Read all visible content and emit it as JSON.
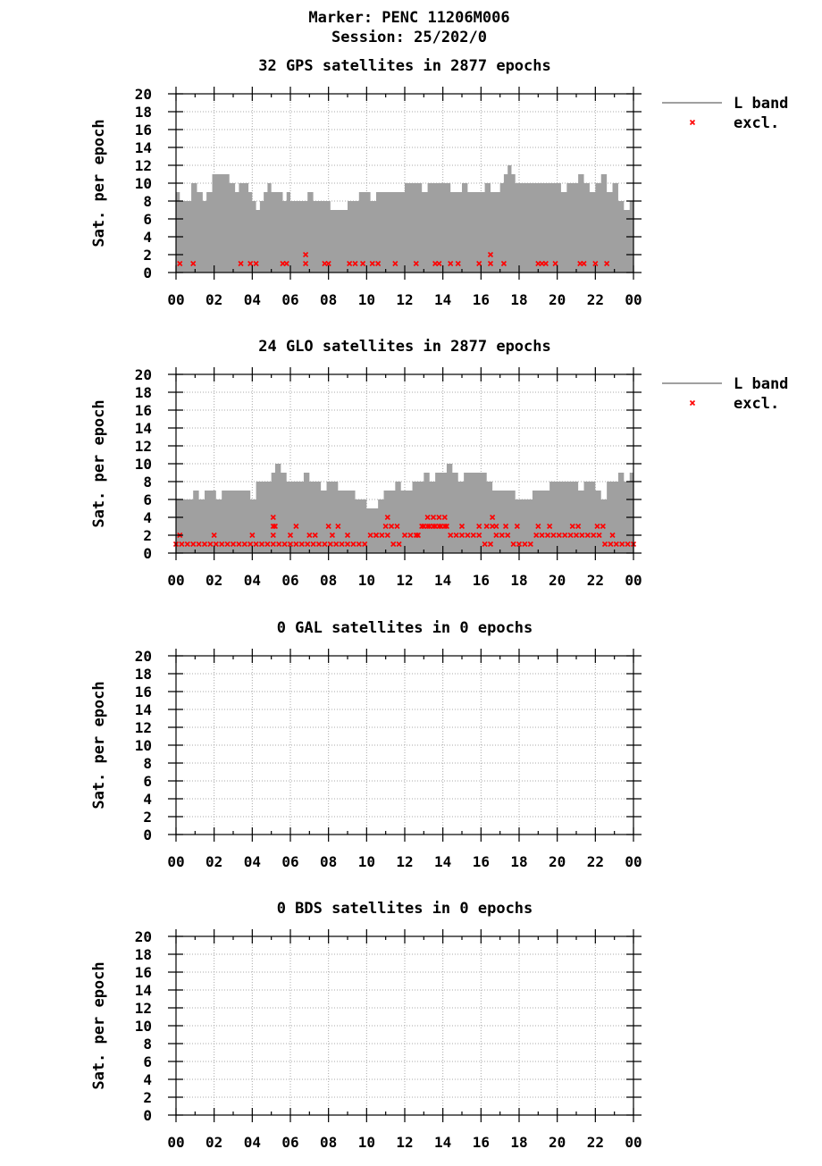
{
  "header": {
    "marker": "Marker: PENC 11206M006",
    "session": "Session: 25/202/0"
  },
  "colors": {
    "band": "#a0a0a0",
    "excluded": "#ff0000",
    "grid": "#a8a8a8",
    "axis": "#000000"
  },
  "chart_data": [
    {
      "type": "area",
      "title": "32 GPS satellites in 2877 epochs",
      "xlabel": "",
      "ylabel": "Sat. per epoch",
      "ylim": [
        0,
        20
      ],
      "xlim": [
        0,
        24
      ],
      "grid": true,
      "legend_position": "right-top",
      "xtick_labels": [
        "00",
        "02",
        "04",
        "06",
        "08",
        "10",
        "12",
        "14",
        "16",
        "18",
        "20",
        "22",
        "00"
      ],
      "ytick_labels": [
        "0",
        "2",
        "4",
        "6",
        "8",
        "10",
        "12",
        "14",
        "16",
        "18",
        "20"
      ],
      "legend": [
        {
          "label": "L band",
          "kind": "line"
        },
        {
          "label": "excl.",
          "kind": "marker"
        }
      ],
      "series": [
        {
          "name": "L band",
          "x": [
            0,
            0.2,
            0.5,
            0.8,
            1.1,
            1.4,
            1.6,
            1.9,
            2.2,
            2.5,
            2.8,
            3.1,
            3.3,
            3.5,
            3.8,
            4.0,
            4.2,
            4.4,
            4.6,
            4.8,
            5.0,
            5.3,
            5.6,
            5.8,
            6.0,
            6.3,
            6.6,
            6.9,
            7.2,
            7.5,
            7.8,
            8.1,
            8.4,
            8.7,
            9.0,
            9.3,
            9.6,
            9.9,
            10.2,
            10.5,
            10.8,
            11.1,
            11.4,
            11.7,
            12.0,
            12.3,
            12.6,
            12.9,
            13.2,
            13.5,
            13.8,
            14.1,
            14.4,
            14.7,
            15.0,
            15.3,
            15.6,
            15.9,
            16.2,
            16.5,
            16.8,
            17.0,
            17.2,
            17.4,
            17.6,
            17.8,
            18.1,
            18.4,
            18.7,
            19.0,
            19.3,
            19.6,
            19.9,
            20.2,
            20.5,
            20.8,
            21.1,
            21.4,
            21.7,
            22.0,
            22.3,
            22.6,
            22.9,
            23.2,
            23.5,
            23.8,
            24.0
          ],
          "values": [
            9,
            8,
            8,
            10,
            9,
            8,
            9,
            11,
            11,
            11,
            10,
            9,
            10,
            10,
            9,
            8,
            7,
            8,
            9,
            10,
            9,
            9,
            8,
            9,
            8,
            8,
            8,
            9,
            8,
            8,
            8,
            7,
            7,
            7,
            8,
            8,
            9,
            9,
            8,
            9,
            9,
            9,
            9,
            9,
            10,
            10,
            10,
            9,
            10,
            10,
            10,
            10,
            9,
            9,
            10,
            9,
            9,
            9,
            10,
            9,
            9,
            10,
            11,
            12,
            11,
            10,
            10,
            10,
            10,
            10,
            10,
            10,
            10,
            9,
            10,
            10,
            11,
            10,
            9,
            10,
            11,
            9,
            10,
            8,
            7,
            8,
            9
          ]
        },
        {
          "name": "excl.",
          "x": [
            0.2,
            0.9,
            3.4,
            3.9,
            4.2,
            5.6,
            5.8,
            6.8,
            7.8,
            8.0,
            9.1,
            9.4,
            9.8,
            10.3,
            10.6,
            11.5,
            12.6,
            13.6,
            13.8,
            14.4,
            14.8,
            15.9,
            16.5,
            17.2,
            19.0,
            19.2,
            19.4,
            19.9,
            21.2,
            21.4,
            22.0,
            22.6,
            6.8,
            16.5
          ],
          "values": [
            1,
            1,
            1,
            1,
            1,
            1,
            1,
            1,
            1,
            1,
            1,
            1,
            1,
            1,
            1,
            1,
            1,
            1,
            1,
            1,
            1,
            1,
            1,
            1,
            1,
            1,
            1,
            1,
            1,
            1,
            1,
            1,
            2,
            2
          ]
        }
      ]
    },
    {
      "type": "area",
      "title": "24 GLO satellites in 2877 epochs",
      "xlabel": "",
      "ylabel": "Sat. per epoch",
      "ylim": [
        0,
        20
      ],
      "xlim": [
        0,
        24
      ],
      "grid": true,
      "legend_position": "right-top",
      "xtick_labels": [
        "00",
        "02",
        "04",
        "06",
        "08",
        "10",
        "12",
        "14",
        "16",
        "18",
        "20",
        "22",
        "00"
      ],
      "ytick_labels": [
        "0",
        "2",
        "4",
        "6",
        "8",
        "10",
        "12",
        "14",
        "16",
        "18",
        "20"
      ],
      "legend": [
        {
          "label": "L band",
          "kind": "line"
        },
        {
          "label": "excl.",
          "kind": "marker"
        }
      ],
      "series": [
        {
          "name": "L band",
          "x": [
            0,
            0.3,
            0.6,
            0.9,
            1.2,
            1.5,
            1.8,
            2.1,
            2.4,
            2.7,
            3.0,
            3.3,
            3.6,
            3.9,
            4.2,
            4.5,
            4.8,
            5.0,
            5.2,
            5.5,
            5.8,
            6.1,
            6.4,
            6.7,
            7.0,
            7.3,
            7.6,
            7.9,
            8.2,
            8.5,
            8.8,
            9.1,
            9.4,
            9.7,
            10.0,
            10.3,
            10.6,
            10.9,
            11.2,
            11.5,
            11.8,
            12.1,
            12.4,
            12.7,
            13.0,
            13.3,
            13.6,
            13.9,
            14.2,
            14.5,
            14.8,
            15.1,
            15.4,
            15.7,
            16.0,
            16.3,
            16.6,
            16.9,
            17.2,
            17.5,
            17.8,
            18.1,
            18.4,
            18.7,
            19.0,
            19.3,
            19.6,
            19.9,
            20.2,
            20.5,
            20.8,
            21.1,
            21.4,
            21.7,
            22.0,
            22.3,
            22.6,
            22.9,
            23.2,
            23.5,
            23.8,
            24.0
          ],
          "values": [
            6,
            6,
            6,
            7,
            6,
            7,
            7,
            6,
            7,
            7,
            7,
            7,
            7,
            6,
            8,
            8,
            8,
            9,
            10,
            9,
            8,
            8,
            8,
            9,
            8,
            8,
            7,
            8,
            8,
            7,
            7,
            7,
            6,
            6,
            5,
            5,
            6,
            7,
            7,
            8,
            7,
            7,
            8,
            8,
            9,
            8,
            9,
            9,
            10,
            9,
            8,
            9,
            9,
            9,
            9,
            8,
            7,
            7,
            7,
            7,
            6,
            6,
            6,
            7,
            7,
            7,
            8,
            8,
            8,
            8,
            8,
            7,
            8,
            8,
            7,
            6,
            8,
            8,
            9,
            8,
            9,
            9
          ]
        },
        {
          "name": "excl.",
          "x": [
            0.0,
            0.3,
            0.6,
            0.9,
            1.2,
            1.5,
            1.8,
            2.1,
            2.4,
            2.7,
            3.0,
            3.3,
            3.6,
            3.9,
            4.2,
            4.5,
            4.8,
            5.1,
            5.4,
            5.7,
            6.0,
            6.3,
            6.6,
            6.9,
            7.2,
            7.5,
            7.8,
            8.1,
            8.4,
            8.7,
            9.0,
            9.3,
            9.6,
            9.9,
            10.2,
            10.5,
            10.8,
            11.1,
            11.4,
            11.7,
            12.0,
            12.3,
            12.6,
            12.9,
            13.2,
            13.5,
            13.8,
            14.1,
            14.4,
            14.7,
            15.0,
            15.3,
            15.6,
            15.9,
            16.2,
            16.5,
            16.8,
            17.1,
            17.4,
            17.7,
            18.0,
            18.3,
            18.6,
            18.9,
            19.2,
            19.5,
            19.8,
            20.1,
            20.4,
            20.7,
            21.0,
            21.3,
            21.6,
            21.9,
            22.2,
            22.5,
            22.8,
            23.1,
            23.4,
            23.7,
            24.0,
            0.2,
            2.0,
            4.0,
            5.1,
            5.2,
            6.0,
            6.3,
            7.0,
            7.3,
            8.0,
            8.2,
            8.5,
            9.0,
            10.5,
            11.0,
            11.3,
            11.6,
            12.7,
            13.0,
            13.3,
            13.6,
            13.9,
            14.2,
            15.0,
            15.9,
            16.3,
            16.6,
            16.8,
            17.3,
            17.9,
            19.0,
            19.6,
            20.8,
            21.1,
            22.1,
            22.4,
            22.9,
            5.1,
            11.1,
            13.2,
            13.5,
            13.8,
            14.1,
            16.6,
            5.1
          ],
          "values": [
            1,
            1,
            1,
            1,
            1,
            1,
            1,
            1,
            1,
            1,
            1,
            1,
            1,
            1,
            1,
            1,
            1,
            1,
            1,
            1,
            1,
            1,
            1,
            1,
            1,
            1,
            1,
            1,
            1,
            1,
            1,
            1,
            1,
            1,
            2,
            2,
            2,
            2,
            1,
            1,
            2,
            2,
            2,
            3,
            3,
            3,
            3,
            3,
            2,
            2,
            2,
            2,
            2,
            2,
            1,
            1,
            2,
            2,
            2,
            1,
            1,
            1,
            1,
            2,
            2,
            2,
            2,
            2,
            2,
            2,
            2,
            2,
            2,
            2,
            2,
            1,
            1,
            1,
            1,
            1,
            1,
            2,
            2,
            2,
            2,
            3,
            2,
            3,
            2,
            2,
            3,
            2,
            3,
            2,
            2,
            3,
            3,
            3,
            2,
            3,
            3,
            3,
            3,
            3,
            3,
            3,
            3,
            3,
            3,
            3,
            3,
            3,
            3,
            3,
            3,
            3,
            3,
            2,
            3,
            4,
            4,
            4,
            4,
            4,
            4,
            4
          ]
        }
      ]
    },
    {
      "type": "area",
      "title": "0 GAL satellites in 0 epochs",
      "xlabel": "",
      "ylabel": "Sat. per epoch",
      "ylim": [
        0,
        20
      ],
      "xlim": [
        0,
        24
      ],
      "grid": true,
      "xtick_labels": [
        "00",
        "02",
        "04",
        "06",
        "08",
        "10",
        "12",
        "14",
        "16",
        "18",
        "20",
        "22",
        "00"
      ],
      "ytick_labels": [
        "0",
        "2",
        "4",
        "6",
        "8",
        "10",
        "12",
        "14",
        "16",
        "18",
        "20"
      ],
      "legend": [],
      "series": []
    },
    {
      "type": "area",
      "title": "0 BDS satellites in 0 epochs",
      "xlabel": "",
      "ylabel": "Sat. per epoch",
      "ylim": [
        0,
        20
      ],
      "xlim": [
        0,
        24
      ],
      "grid": true,
      "xtick_labels": [
        "00",
        "02",
        "04",
        "06",
        "08",
        "10",
        "12",
        "14",
        "16",
        "18",
        "20",
        "22",
        "00"
      ],
      "ytick_labels": [
        "0",
        "2",
        "4",
        "6",
        "8",
        "10",
        "12",
        "14",
        "16",
        "18",
        "20"
      ],
      "legend": [],
      "series": []
    }
  ]
}
